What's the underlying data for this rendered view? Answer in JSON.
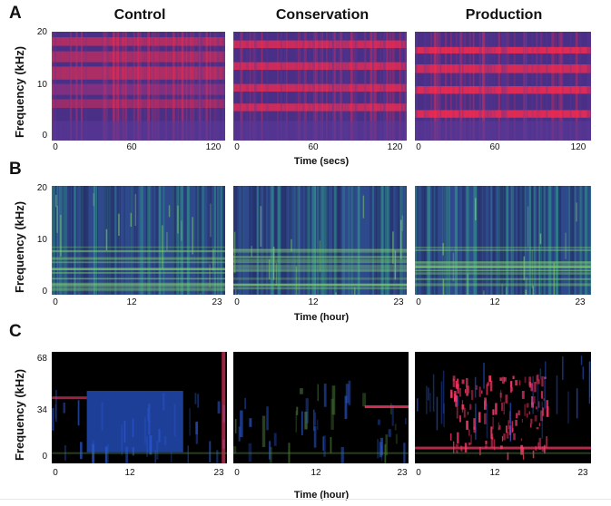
{
  "panels": [
    {
      "letter": "A",
      "ylabel": "Frequency (kHz)",
      "xlabel": "Time (secs)",
      "yticks": [
        "20",
        "10",
        "0"
      ],
      "xticks": [
        "0",
        "60",
        "120"
      ]
    },
    {
      "letter": "B",
      "ylabel": "Frequency (kHz)",
      "xlabel": "Time (hour)",
      "yticks": [
        "20",
        "10",
        "0"
      ],
      "xticks": [
        "0",
        "12",
        "23"
      ]
    },
    {
      "letter": "C",
      "ylabel": "Frequency (kHz)",
      "xlabel": "Time (hour)",
      "yticks": [
        "68",
        "34",
        "0"
      ],
      "xticks": [
        "0",
        "12",
        "23"
      ]
    }
  ],
  "columns": [
    "Control",
    "Conservation",
    "Production"
  ],
  "spectrogram_palettes": {
    "A": {
      "background": "#4a2f86",
      "hot": "#ff2b4a",
      "warm": "#b8327a",
      "cool": "#5a3a9a"
    },
    "B": {
      "background": "#2e4a8c",
      "mid": "#2f8a8a",
      "hot": "#7ecf6a",
      "dark": "#26306a"
    },
    "C": {
      "background": "#000000",
      "blue": "#2a5ad8",
      "pink": "#ff3a6a",
      "green": "#4a7a3a"
    }
  }
}
